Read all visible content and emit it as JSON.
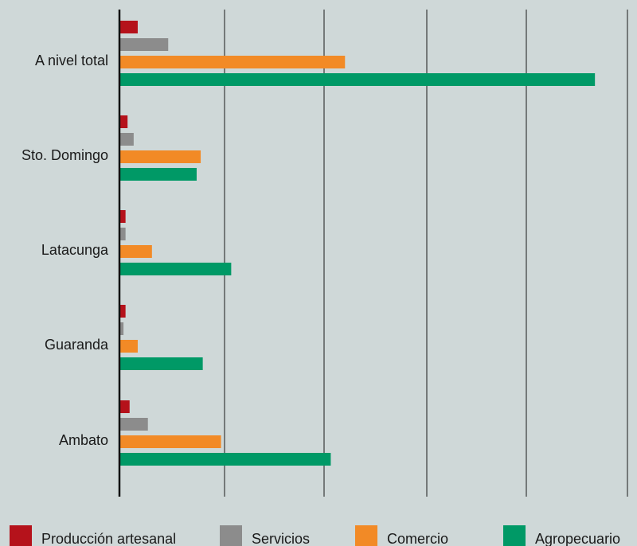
{
  "chart_data": {
    "type": "bar",
    "orientation": "horizontal",
    "title": "",
    "xlabel": "",
    "ylabel": "",
    "categories": [
      "A nivel total",
      "Sto. Domingo",
      "Latacunga",
      "Guaranda",
      "Ambato"
    ],
    "series": [
      {
        "name": "Producción artesanal",
        "color": "#b5121b",
        "values": [
          0.9,
          0.4,
          0.3,
          0.3,
          0.5
        ]
      },
      {
        "name": "Servicios",
        "color": "#8c8c8c",
        "values": [
          2.4,
          0.7,
          0.3,
          0.2,
          1.4
        ]
      },
      {
        "name": "Comercio",
        "color": "#f28a26",
        "values": [
          11.1,
          4.0,
          1.6,
          0.9,
          5.0
        ]
      },
      {
        "name": "Agropecuario",
        "color": "#009966",
        "values": [
          23.4,
          3.8,
          5.5,
          4.1,
          10.4
        ]
      }
    ],
    "xlim": [
      0,
      25
    ],
    "grid": true,
    "legend_position": "bottom"
  }
}
